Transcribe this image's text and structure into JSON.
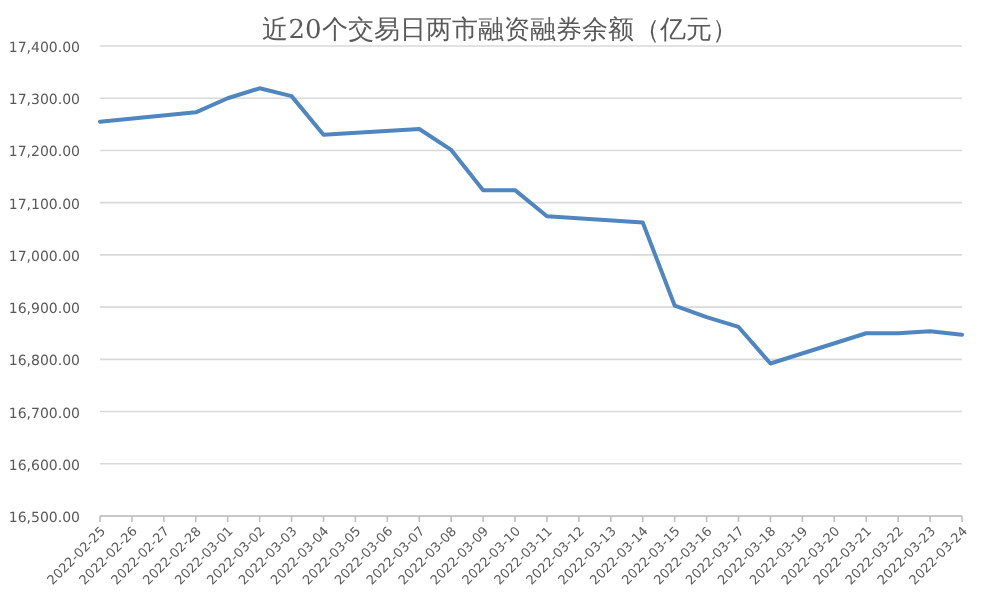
{
  "chart_data": {
    "type": "line",
    "title": "近20个交易日两市融资融券余额（亿元）",
    "x": [
      "2022-02-25",
      "2022-02-28",
      "2022-03-01",
      "2022-03-02",
      "2022-03-03",
      "2022-03-04",
      "2022-03-07",
      "2022-03-08",
      "2022-03-09",
      "2022-03-10",
      "2022-03-11",
      "2022-03-14",
      "2022-03-15",
      "2022-03-16",
      "2022-03-17",
      "2022-03-18",
      "2022-03-21",
      "2022-03-22",
      "2022-03-23",
      "2022-03-24"
    ],
    "series": [
      {
        "color": "#4f86c0",
        "values": [
          17255,
          17273,
          17300,
          17319,
          17304,
          17230,
          17241,
          17201,
          17124,
          17124,
          17074,
          17062,
          16903,
          16881,
          16862,
          16792,
          16850,
          16850,
          16854,
          16847
        ]
      }
    ],
    "xlim": [
      "2022-02-25",
      "2022-03-24"
    ],
    "xticks": [
      "2022-02-25",
      "2022-02-26",
      "2022-02-27",
      "2022-02-28",
      "2022-03-01",
      "2022-03-02",
      "2022-03-03",
      "2022-03-04",
      "2022-03-05",
      "2022-03-06",
      "2022-03-07",
      "2022-03-08",
      "2022-03-09",
      "2022-03-10",
      "2022-03-11",
      "2022-03-12",
      "2022-03-13",
      "2022-03-14",
      "2022-03-15",
      "2022-03-16",
      "2022-03-17",
      "2022-03-18",
      "2022-03-19",
      "2022-03-20",
      "2022-03-21",
      "2022-03-22",
      "2022-03-23",
      "2022-03-24"
    ],
    "ylim": [
      16500,
      17400
    ],
    "yticks": [
      {
        "value": 16500,
        "label": "16,500.00"
      },
      {
        "value": 16600,
        "label": "16,600.00"
      },
      {
        "value": 16700,
        "label": "16,700.00"
      },
      {
        "value": 16800,
        "label": "16,800.00"
      },
      {
        "value": 16900,
        "label": "16,900.00"
      },
      {
        "value": 17000,
        "label": "17,000.00"
      },
      {
        "value": 17100,
        "label": "17,100.00"
      },
      {
        "value": 17200,
        "label": "17,200.00"
      },
      {
        "value": 17300,
        "label": "17,300.00"
      },
      {
        "value": 17400,
        "label": "17,400.00"
      }
    ],
    "grid": "y",
    "marker": "none",
    "line_style": "solid"
  }
}
